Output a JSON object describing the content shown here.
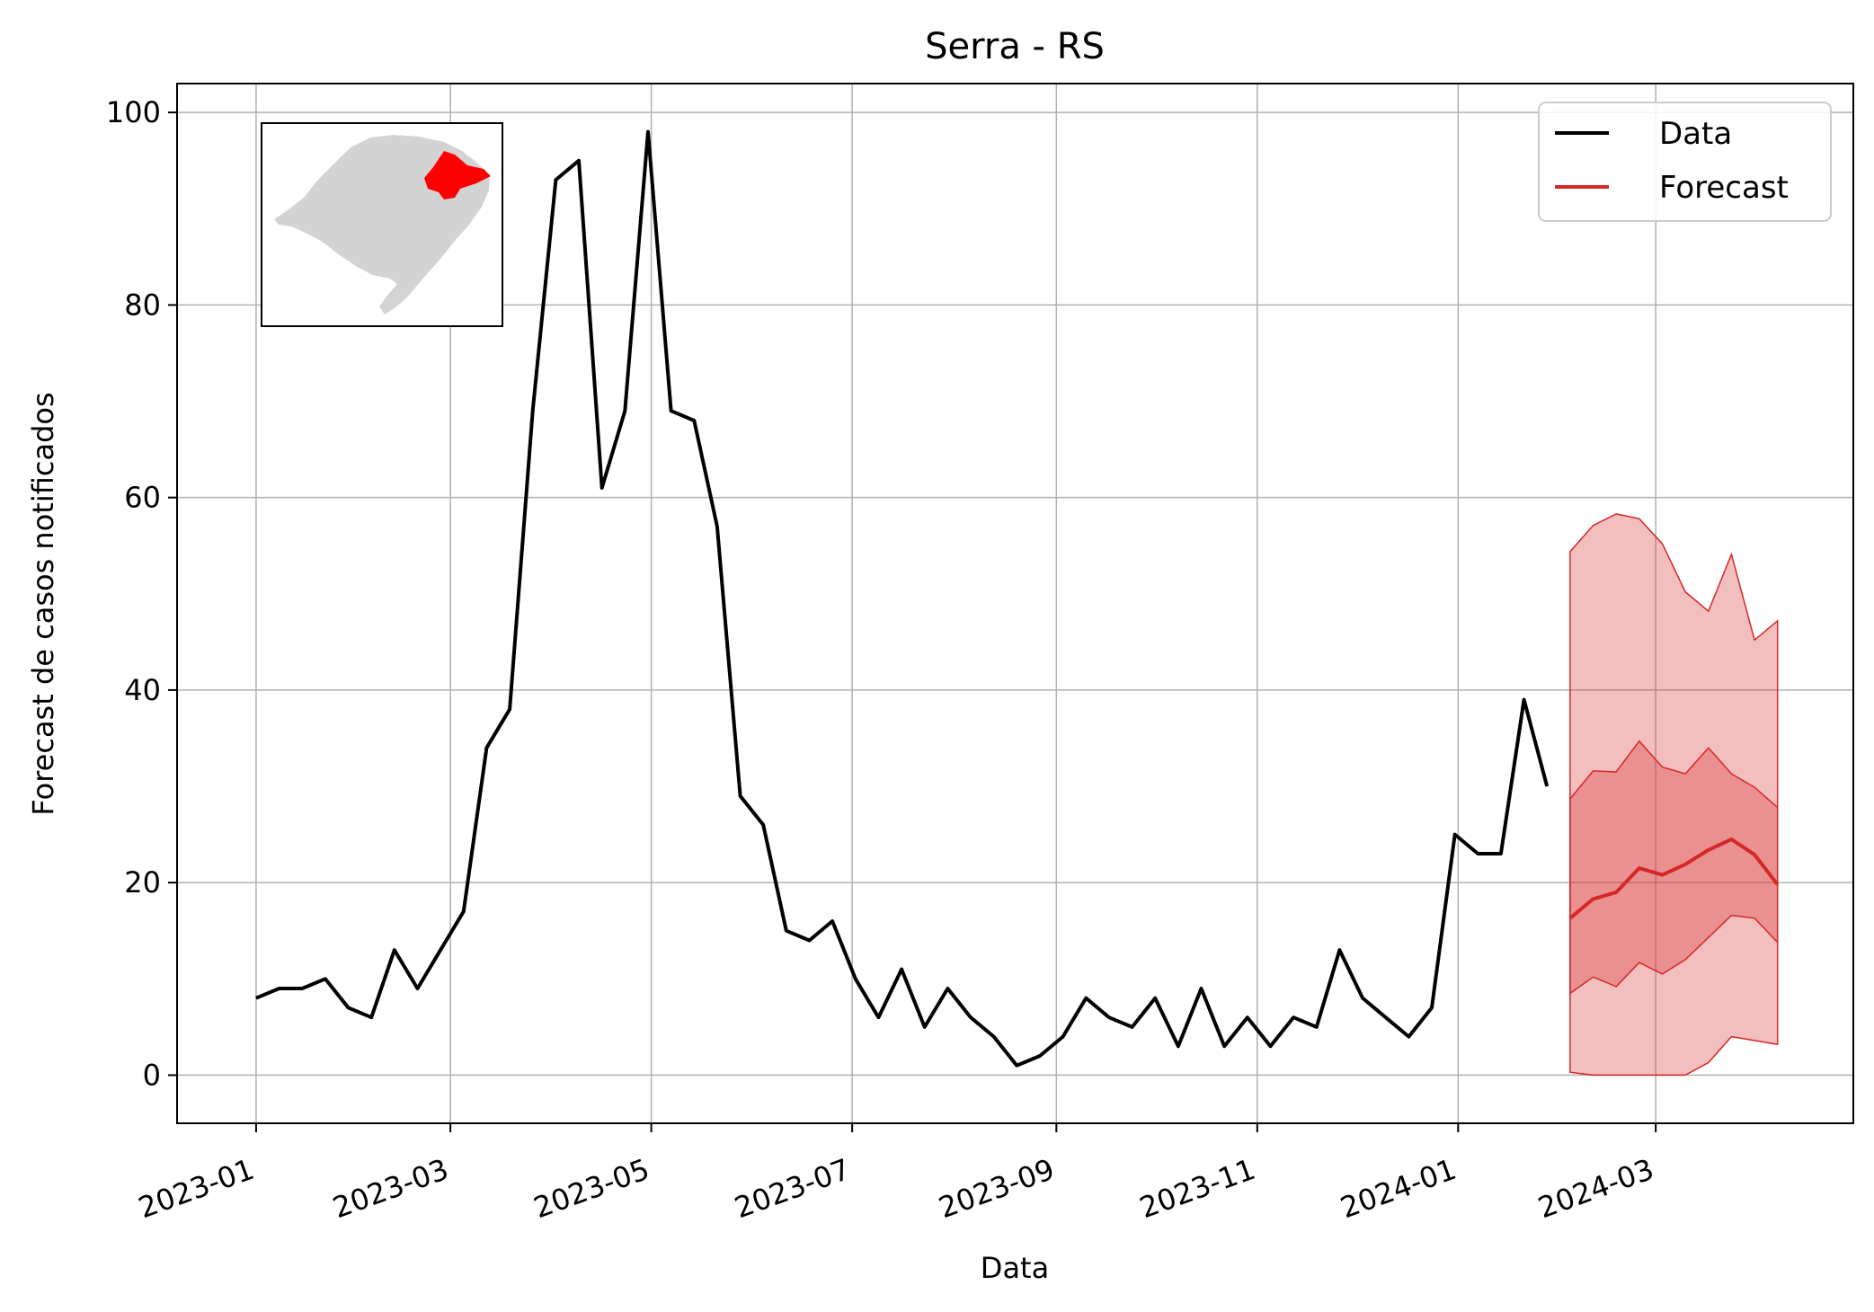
{
  "chart_data": {
    "type": "line",
    "title": "Serra - RS",
    "xlabel": "Data",
    "ylabel": "Forecast de casos notificados",
    "ylim": [
      -5,
      103
    ],
    "xlim": [
      "2022-12-08",
      "2024-04-30"
    ],
    "grid": true,
    "legend_position": "top-right",
    "x_tick_labels": [
      "2023-01",
      "2023-03",
      "2023-05",
      "2023-07",
      "2023-09",
      "2023-11",
      "2024-01",
      "2024-03"
    ],
    "y_ticks": [
      0,
      20,
      40,
      60,
      80,
      100
    ],
    "colors": {
      "data": "#000000",
      "forecast": "#d62728",
      "band_outer": "#f0bbbe",
      "band_inner": "#e89090",
      "grid": "#b0b0b0",
      "map_region": "#d3d3d3",
      "map_highlight": "#ff0000"
    },
    "inset": "map of Rio Grande do Sul with the Serra region highlighted in red",
    "series": [
      {
        "name": "Data",
        "color": "#000000",
        "x": [
          "2023-01-01",
          "2023-01-08",
          "2023-01-15",
          "2023-01-22",
          "2023-01-29",
          "2023-02-05",
          "2023-02-12",
          "2023-02-19",
          "2023-02-26",
          "2023-03-05",
          "2023-03-12",
          "2023-03-19",
          "2023-03-26",
          "2023-04-02",
          "2023-04-09",
          "2023-04-16",
          "2023-04-23",
          "2023-04-30",
          "2023-05-07",
          "2023-05-14",
          "2023-05-21",
          "2023-05-28",
          "2023-06-04",
          "2023-06-11",
          "2023-06-18",
          "2023-06-25",
          "2023-07-02",
          "2023-07-09",
          "2023-07-16",
          "2023-07-23",
          "2023-07-30",
          "2023-08-06",
          "2023-08-13",
          "2023-08-20",
          "2023-08-27",
          "2023-09-03",
          "2023-09-10",
          "2023-09-17",
          "2023-09-24",
          "2023-10-01",
          "2023-10-08",
          "2023-10-15",
          "2023-10-22",
          "2023-10-29",
          "2023-11-05",
          "2023-11-12",
          "2023-11-19",
          "2023-11-26",
          "2023-12-03",
          "2023-12-10",
          "2023-12-17",
          "2023-12-24",
          "2023-12-31",
          "2024-01-07",
          "2024-01-14",
          "2024-01-21",
          "2024-01-28"
        ],
        "values": [
          8,
          9,
          9,
          10,
          7,
          6,
          13,
          9,
          13,
          17,
          34,
          38,
          69,
          93,
          95,
          61,
          69,
          98,
          69,
          68,
          57,
          29,
          26,
          15,
          14,
          16,
          10,
          6,
          11,
          5,
          9,
          6,
          4,
          1,
          2,
          4,
          8,
          6,
          5,
          8,
          3,
          9,
          3,
          6,
          3,
          6,
          5,
          13,
          8,
          6,
          4,
          7,
          25,
          23,
          23,
          39,
          30
        ]
      },
      {
        "name": "Forecast",
        "color": "#d62728",
        "x": [
          "2024-02-04",
          "2024-02-11",
          "2024-02-18",
          "2024-02-25",
          "2024-03-03",
          "2024-03-10",
          "2024-03-17",
          "2024-03-24",
          "2024-03-31",
          "2024-04-07"
        ],
        "values": [
          16.3,
          18.3,
          19,
          21.5,
          20.8,
          21.9,
          23.4,
          24.5,
          22.9,
          19.8
        ],
        "inner_lower": [
          8.5,
          10.2,
          9.2,
          11.7,
          10.5,
          12,
          14.3,
          16.6,
          16.3,
          13.8
        ],
        "inner_upper": [
          28.7,
          31.6,
          31.5,
          34.7,
          32,
          31.3,
          34,
          31.3,
          29.9,
          27.8
        ],
        "outer_lower": [
          0.3,
          0,
          0,
          0,
          0,
          0,
          1.3,
          4,
          3.6,
          3.2
        ],
        "outer_upper": [
          54.4,
          57.1,
          58.3,
          57.8,
          55.2,
          50.2,
          48.2,
          54.1,
          45.2,
          47.2
        ]
      }
    ]
  }
}
